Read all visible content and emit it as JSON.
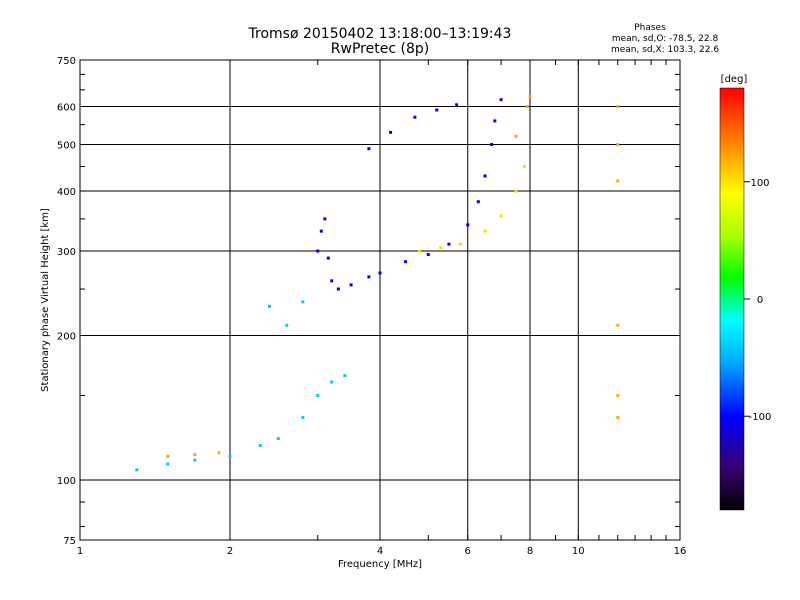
{
  "chart_data": {
    "type": "scatter",
    "title": "Tromsø 20150402 13:18:00–13:19:43",
    "subtitle": "RwPretec (8p)",
    "stats": {
      "heading": "Phases",
      "o_mode": "mean, sd,O: -78.5, 22.8",
      "x_mode": "mean, sd,X: 103.3, 22.6"
    },
    "xlabel": "Frequency [MHz]",
    "ylabel": "Stationary phase Virtual Height [km]",
    "x_scale": "log",
    "y_scale": "log",
    "xlim": [
      1,
      16
    ],
    "ylim": [
      75,
      750
    ],
    "x_ticks": [
      1,
      2,
      4,
      6,
      8,
      10,
      16
    ],
    "y_ticks": [
      75,
      100,
      200,
      300,
      400,
      500,
      600,
      750
    ],
    "grid": true,
    "colorbar": {
      "label": "[deg]",
      "range": [
        -180,
        180
      ],
      "ticks": [
        100,
        0,
        -100
      ]
    },
    "series": [
      {
        "phase": -100,
        "points": [
          [
            3.0,
            300
          ],
          [
            3.05,
            330
          ],
          [
            3.1,
            350
          ],
          [
            3.15,
            290
          ],
          [
            3.2,
            260
          ],
          [
            3.3,
            250
          ],
          [
            3.5,
            255
          ],
          [
            3.8,
            265
          ],
          [
            4.0,
            270
          ],
          [
            4.5,
            285
          ],
          [
            5.0,
            295
          ],
          [
            5.5,
            310
          ],
          [
            6.0,
            340
          ],
          [
            6.3,
            380
          ],
          [
            6.5,
            430
          ],
          [
            6.7,
            500
          ],
          [
            6.8,
            560
          ],
          [
            7.0,
            620
          ],
          [
            3.8,
            490
          ],
          [
            4.2,
            530
          ],
          [
            4.7,
            570
          ],
          [
            5.2,
            590
          ],
          [
            5.7,
            605
          ]
        ]
      },
      {
        "phase": -40,
        "points": [
          [
            1.3,
            105
          ],
          [
            1.5,
            108
          ],
          [
            1.7,
            110
          ],
          [
            2.0,
            112
          ],
          [
            2.3,
            118
          ],
          [
            2.5,
            122
          ],
          [
            2.8,
            135
          ],
          [
            3.0,
            150
          ],
          [
            2.4,
            230
          ],
          [
            2.6,
            210
          ],
          [
            2.8,
            235
          ],
          [
            3.2,
            160
          ],
          [
            3.4,
            165
          ]
        ]
      },
      {
        "phase": 60,
        "points": [
          [
            4.8,
            300
          ],
          [
            5.3,
            305
          ],
          [
            5.8,
            310
          ],
          [
            6.5,
            330
          ],
          [
            7.0,
            355
          ],
          [
            7.5,
            400
          ],
          [
            7.8,
            450
          ]
        ]
      },
      {
        "phase": 120,
        "points": [
          [
            1.5,
            112
          ],
          [
            1.7,
            113
          ],
          [
            1.9,
            114
          ],
          [
            7.5,
            520
          ],
          [
            7.9,
            600
          ],
          [
            8.0,
            630
          ],
          [
            12.0,
            600
          ],
          [
            12.0,
            500
          ],
          [
            12.0,
            420
          ],
          [
            12.0,
            210
          ],
          [
            12.0,
            150
          ],
          [
            12.0,
            135
          ]
        ]
      }
    ]
  }
}
